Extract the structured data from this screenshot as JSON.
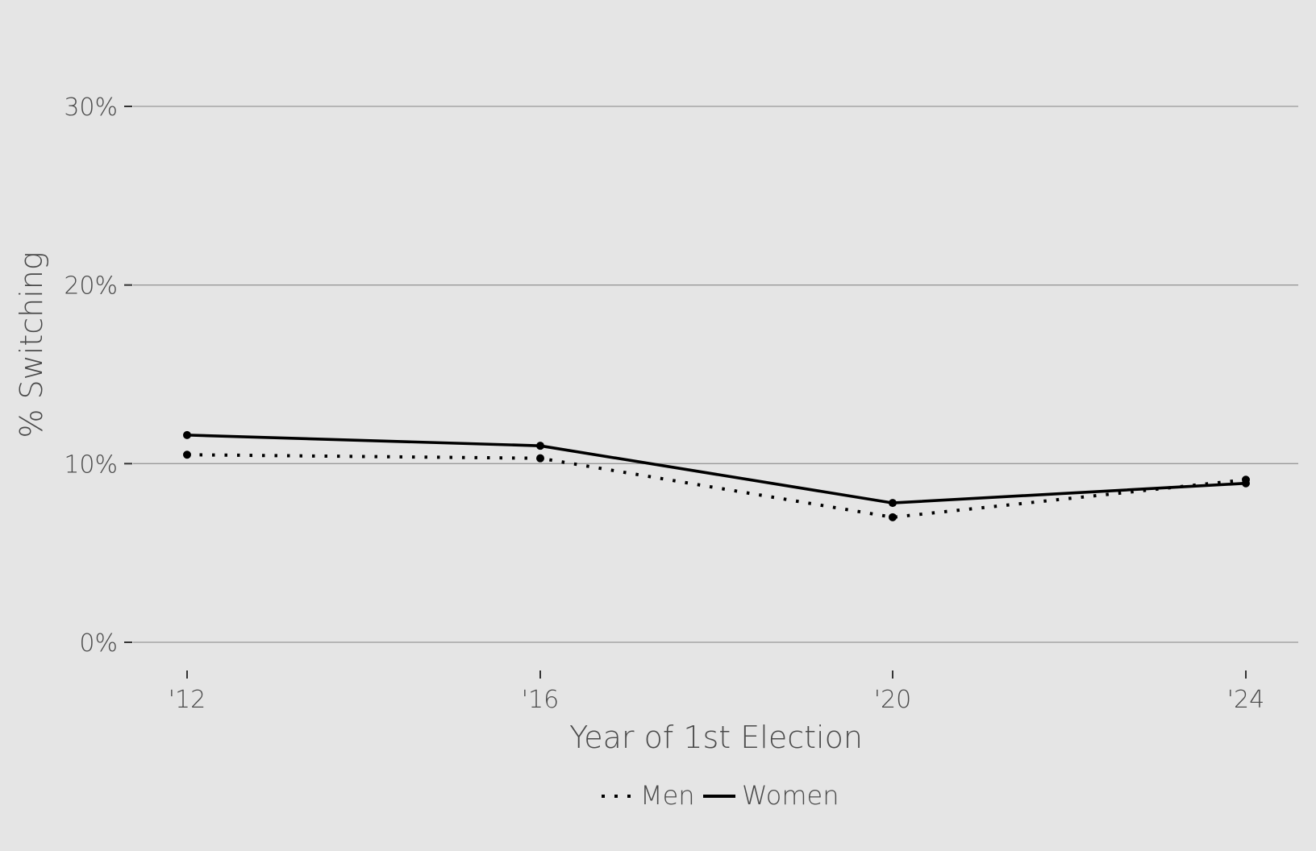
{
  "chart_data": {
    "type": "line",
    "title": "",
    "xlabel": "Year of 1st Election",
    "ylabel": "% Switching",
    "x": [
      "'12",
      "'16",
      "'20",
      "'24"
    ],
    "ylim": [
      0,
      30
    ],
    "yticks": [
      0,
      10,
      20,
      30
    ],
    "ytick_labels": [
      "0%",
      "10%",
      "20%",
      "30%"
    ],
    "grid": "horizontal",
    "legend_position": "bottom",
    "series": [
      {
        "name": "Men",
        "line_style": "dotted",
        "color": "#000000",
        "values": [
          10.5,
          10.3,
          7.0,
          9.1
        ]
      },
      {
        "name": "Women",
        "line_style": "solid",
        "color": "#000000",
        "values": [
          11.6,
          11.0,
          7.8,
          8.9
        ]
      }
    ]
  },
  "colors": {
    "background": "#e5e5e5",
    "grid": "#999999",
    "text": "#4a4a4a"
  }
}
